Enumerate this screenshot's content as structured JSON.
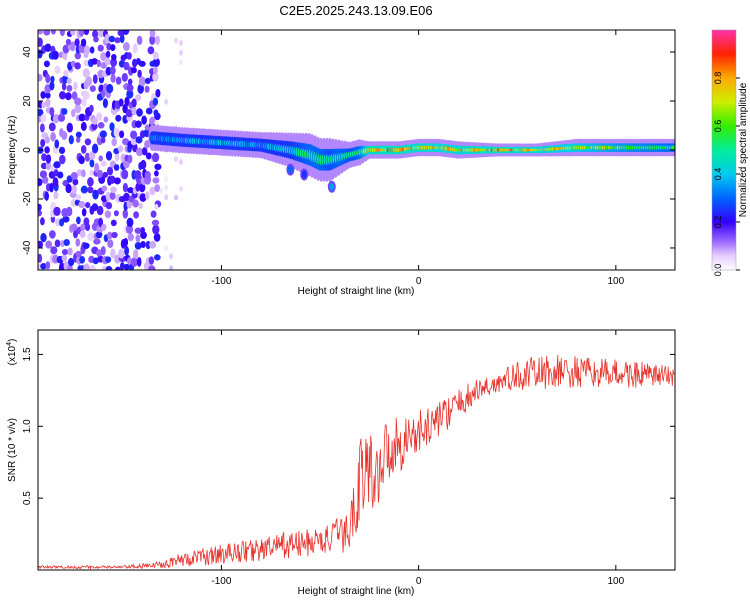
{
  "title": "C2E5.2025.243.13.09.E06",
  "chart_data": [
    {
      "type": "heatmap",
      "title": "C2E5.2025.243.13.09.E06",
      "xlabel": "Height of straight line (km)",
      "ylabel": "Frequency (Hz)",
      "xlim": [
        -193,
        130
      ],
      "ylim": [
        -49,
        49
      ],
      "xticks": [
        -100,
        0,
        100
      ],
      "xtick_labels": [
        "-100",
        "0",
        "100"
      ],
      "yticks": [
        -40,
        -20,
        0,
        20,
        40
      ],
      "ytick_labels": [
        "-40",
        "-20",
        "0",
        "20",
        "40"
      ],
      "colorbar": {
        "label": "Normalized spectral amplitude",
        "range": [
          0,
          1
        ],
        "ticks": [
          0,
          0.2,
          0.4,
          0.6,
          0.8
        ],
        "tick_labels": [
          "0.0",
          "0.2",
          "0.4",
          "0.6",
          "0.8"
        ]
      },
      "noise_region": {
        "x": [
          -193,
          -133
        ],
        "freq": [
          -49,
          49
        ],
        "amplitude": [
          0.05,
          0.25
        ]
      },
      "sparse_region": {
        "x": [
          -133,
          -120
        ],
        "freq": [
          -49,
          49
        ],
        "amplitude": [
          0.02,
          0.08
        ]
      },
      "ridge": {
        "x": [
          -135,
          -120,
          -100,
          -80,
          -65,
          -55,
          -50,
          -45,
          -40,
          -35,
          -30,
          -25,
          -20,
          -10,
          0,
          10,
          20,
          40,
          60,
          80,
          100,
          130
        ],
        "frequency": [
          5,
          4,
          3,
          2,
          0,
          -2,
          -4,
          -4,
          -3,
          -2,
          -1,
          0,
          0,
          0,
          1,
          1,
          0,
          0,
          0,
          1,
          1,
          1
        ],
        "amplitude": [
          0.35,
          0.4,
          0.45,
          0.4,
          0.5,
          0.6,
          0.6,
          0.55,
          0.6,
          0.55,
          0.6,
          0.85,
          0.9,
          0.9,
          0.85,
          0.85,
          0.85,
          0.9,
          0.85,
          0.8,
          0.7,
          0.6
        ],
        "width_hz": [
          3,
          3,
          3,
          3,
          4,
          5,
          5,
          5,
          4,
          3,
          3,
          2,
          2,
          2,
          2,
          2,
          2,
          1.5,
          1.5,
          2,
          2,
          2
        ]
      },
      "side_features": [
        {
          "x": -65,
          "frequency": -8,
          "amplitude": 0.3
        },
        {
          "x": -58,
          "frequency": -10,
          "amplitude": 0.25
        },
        {
          "x": -44,
          "frequency": -15,
          "amplitude": 0.35
        }
      ]
    },
    {
      "type": "line",
      "xlabel": "Height of straight line (km)",
      "ylabel": "SNR (10 * v/v)",
      "y_multiplier_label": "(x10",
      "y_multiplier_exponent": "4",
      "y_multiplier_suffix": ")",
      "xlim": [
        -193,
        130
      ],
      "ylim": [
        0,
        1.67
      ],
      "xticks": [
        -100,
        0,
        100
      ],
      "xtick_labels": [
        "-100",
        "0",
        "100"
      ],
      "yticks": [
        0.5,
        1.0,
        1.5
      ],
      "ytick_labels": [
        "0.5",
        "1.0",
        "1.5"
      ],
      "color": "#e8332c",
      "series": [
        {
          "name": "SNR",
          "x": [
            -193,
            -170,
            -150,
            -135,
            -125,
            -110,
            -100,
            -90,
            -80,
            -70,
            -60,
            -50,
            -45,
            -40,
            -36,
            -33,
            -30,
            -26,
            -22,
            -18,
            -15,
            -10,
            -5,
            0,
            5,
            10,
            15,
            20,
            25,
            30,
            40,
            50,
            60,
            70,
            80,
            90,
            100,
            110,
            120,
            130
          ],
          "mean": [
            0.02,
            0.02,
            0.02,
            0.03,
            0.06,
            0.09,
            0.11,
            0.13,
            0.14,
            0.17,
            0.18,
            0.2,
            0.22,
            0.25,
            0.25,
            0.4,
            0.65,
            0.7,
            0.65,
            0.78,
            0.85,
            0.88,
            0.92,
            0.95,
            1.0,
            1.05,
            1.1,
            1.15,
            1.2,
            1.25,
            1.3,
            1.35,
            1.37,
            1.38,
            1.37,
            1.37,
            1.37,
            1.36,
            1.35,
            1.35
          ],
          "jitter": [
            0.01,
            0.01,
            0.01,
            0.02,
            0.04,
            0.06,
            0.07,
            0.08,
            0.08,
            0.09,
            0.1,
            0.1,
            0.1,
            0.12,
            0.15,
            0.25,
            0.3,
            0.3,
            0.25,
            0.25,
            0.22,
            0.2,
            0.18,
            0.16,
            0.14,
            0.12,
            0.12,
            0.1,
            0.1,
            0.08,
            0.08,
            0.1,
            0.12,
            0.12,
            0.12,
            0.1,
            0.1,
            0.1,
            0.08,
            0.08
          ]
        }
      ]
    }
  ]
}
